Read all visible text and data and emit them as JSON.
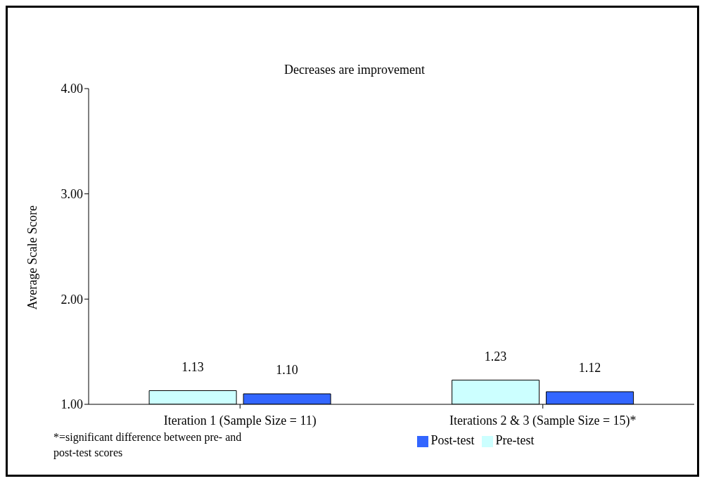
{
  "chart_data": {
    "type": "bar",
    "title": "Decreases are improvement",
    "ylabel": "Average Scale Score",
    "categories": [
      "Iteration 1 (Sample Size = 11)",
      "Iterations 2 & 3 (Sample Size = 15)*"
    ],
    "series": [
      {
        "name": "Pre-test",
        "color": "#ccffff",
        "values": [
          1.13,
          1.23
        ]
      },
      {
        "name": "Post-test",
        "color": "#3366ff",
        "values": [
          1.1,
          1.12
        ]
      }
    ],
    "ylim": [
      1,
      4
    ],
    "yticks": [
      {
        "value": 1,
        "label": "1.00"
      },
      {
        "value": 2,
        "label": "2.00"
      },
      {
        "value": 3,
        "label": "3.00"
      },
      {
        "value": 4,
        "label": "4.00"
      }
    ],
    "value_labels": [
      [
        "1.13",
        "1.23"
      ],
      [
        "1.10",
        "1.12"
      ]
    ],
    "grid": false,
    "legend": "bottom",
    "annotations": [
      "*=significant difference between pre- and post-test scores"
    ]
  }
}
